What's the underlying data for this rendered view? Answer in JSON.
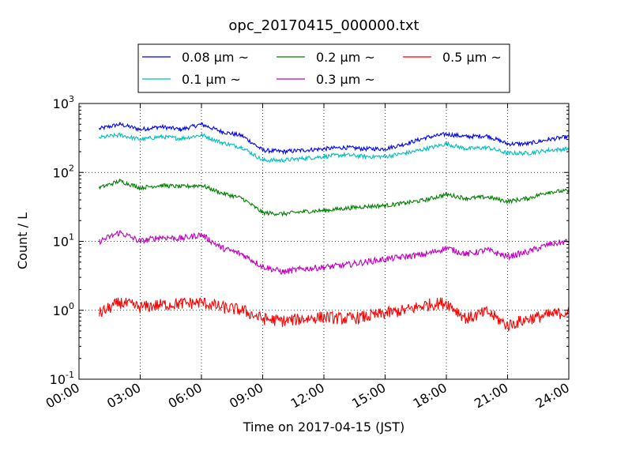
{
  "chart_data": {
    "type": "line",
    "title": "opc_20170415_000000.txt",
    "xlabel": "Time on 2017-04-15 (JST)",
    "ylabel": "Count / L",
    "yscale": "log",
    "ylim": [
      0.1,
      1000
    ],
    "xlim": [
      "00:00",
      "24:00"
    ],
    "x_tick_labels": [
      "00:00",
      "03:00",
      "06:00",
      "09:00",
      "12:00",
      "15:00",
      "18:00",
      "21:00",
      "24:00"
    ],
    "y_ticks": [
      {
        "base": "10",
        "exp": "-1"
      },
      {
        "base": "10",
        "exp": "0"
      },
      {
        "base": "10",
        "exp": "1"
      },
      {
        "base": "10",
        "exp": "2"
      },
      {
        "base": "10",
        "exp": "3"
      }
    ],
    "grid": true,
    "legend_position": "top",
    "x": [
      "01:00",
      "02:00",
      "03:00",
      "04:00",
      "05:00",
      "06:00",
      "07:00",
      "08:00",
      "09:00",
      "10:00",
      "11:00",
      "12:00",
      "13:00",
      "14:00",
      "15:00",
      "16:00",
      "17:00",
      "18:00",
      "19:00",
      "20:00",
      "21:00",
      "22:00",
      "23:00",
      "24:00"
    ],
    "series": [
      {
        "name": "0.08 μm ~",
        "color": "#0000ff",
        "noise": 0.03,
        "values": [
          430,
          500,
          420,
          460,
          420,
          500,
          390,
          340,
          210,
          200,
          210,
          220,
          230,
          220,
          220,
          260,
          320,
          360,
          330,
          340,
          260,
          260,
          300,
          330
        ]
      },
      {
        "name": "0.1 μm ~",
        "color": "#00bfbf",
        "noise": 0.03,
        "values": [
          320,
          350,
          300,
          330,
          310,
          350,
          270,
          230,
          150,
          150,
          160,
          170,
          180,
          170,
          170,
          190,
          220,
          260,
          220,
          230,
          190,
          190,
          210,
          220
        ]
      },
      {
        "name": "0.2 μm ~",
        "color": "#008000",
        "noise": 0.03,
        "values": [
          60,
          75,
          60,
          65,
          62,
          65,
          50,
          42,
          26,
          25,
          27,
          28,
          30,
          32,
          33,
          36,
          40,
          48,
          42,
          44,
          38,
          42,
          52,
          54
        ]
      },
      {
        "name": "0.3 μm ~",
        "color": "#bf00bf",
        "noise": 0.045,
        "values": [
          10,
          13.5,
          10,
          11.5,
          11,
          12.5,
          8,
          6.5,
          4.3,
          3.6,
          4,
          4.2,
          4.5,
          5,
          5.5,
          6,
          6.5,
          8,
          6.5,
          7.5,
          6,
          7,
          9,
          10
        ]
      },
      {
        "name": "0.5 μm ~",
        "color": "#ff0000",
        "noise": 0.09,
        "values": [
          0.9,
          1.3,
          1.1,
          1.2,
          1.25,
          1.3,
          1.1,
          1.0,
          0.75,
          0.7,
          0.75,
          0.8,
          0.75,
          0.8,
          0.9,
          1.0,
          1.2,
          1.3,
          0.75,
          0.95,
          0.6,
          0.75,
          0.85,
          0.95
        ]
      }
    ]
  }
}
